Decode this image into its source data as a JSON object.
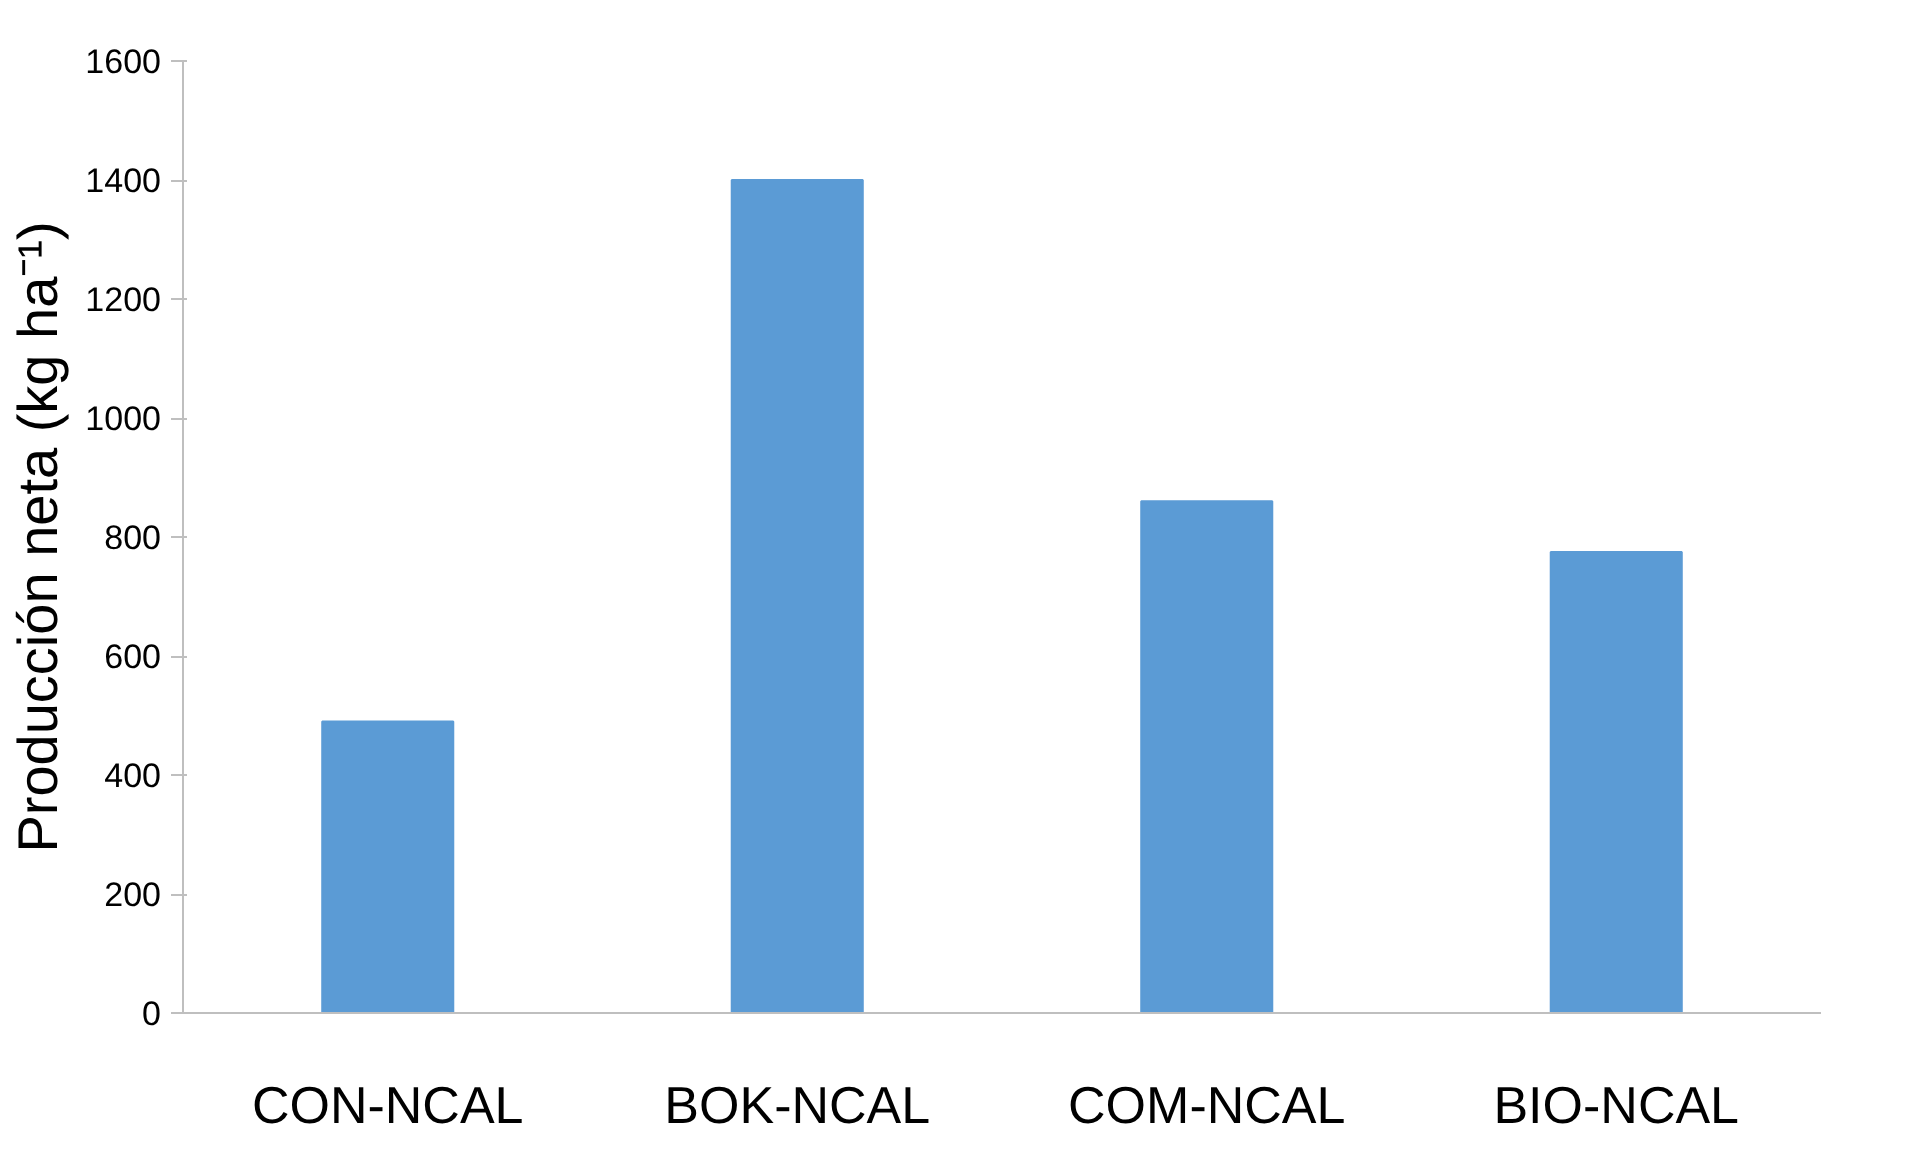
{
  "chart_data": {
    "type": "bar",
    "ylabel": "Producción neta (kg ha⁻¹)",
    "categories": [
      "CON-NCAL",
      "BOK-NCAL",
      "COM-NCAL",
      "BIO-NCAL"
    ],
    "values": [
      490,
      1400,
      860,
      775
    ],
    "color": "#5b9bd5",
    "ylim": [
      0,
      1600
    ],
    "yticks": [
      0,
      200,
      400,
      600,
      800,
      1000,
      1200,
      1400,
      1600
    ],
    "grid": false
  }
}
